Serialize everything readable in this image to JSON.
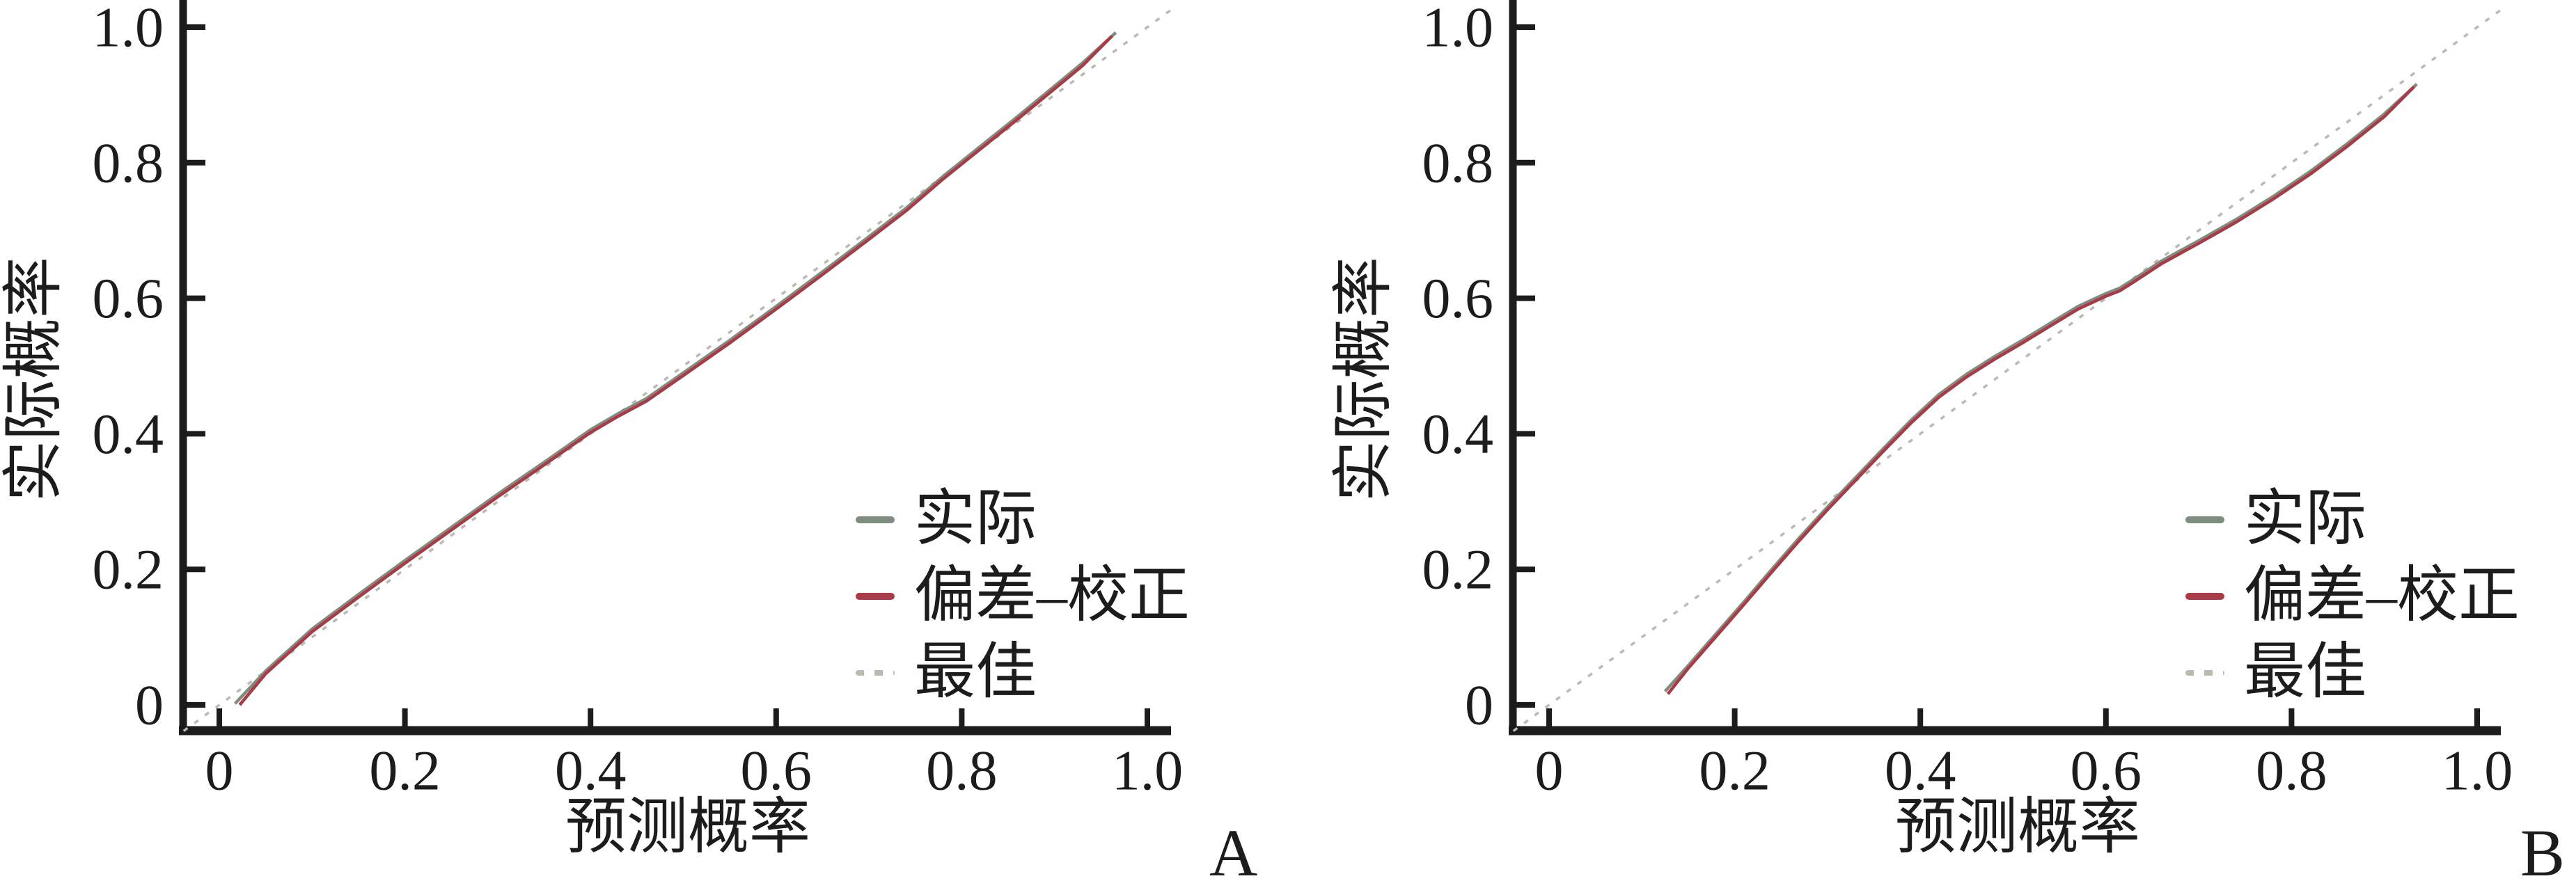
{
  "colors": {
    "axis": "#1c1c1c",
    "text": "#1c1c1c",
    "background": "#ffffff"
  },
  "chart_data": [
    {
      "type": "line",
      "panel_label": "A",
      "title": "",
      "xlabel": "预测概率",
      "ylabel": "实际概率",
      "xlim": [
        0,
        1
      ],
      "ylim": [
        0,
        1
      ],
      "grid": false,
      "legend_position": "lower-right-inside",
      "x_ticks": [
        0,
        0.2,
        0.4,
        0.6,
        0.8,
        1.0
      ],
      "x_tick_labels": [
        "0",
        "0.2",
        "0.4",
        "0.6",
        "0.8",
        "1.0"
      ],
      "y_ticks": [
        0,
        0.2,
        0.4,
        0.6,
        0.8,
        1.0
      ],
      "y_tick_labels": [
        "0",
        "0.2",
        "0.4",
        "0.6",
        "0.8",
        "1.0"
      ],
      "legend": [
        {
          "label": "实际",
          "color": "#7E8D7F",
          "style": "solid"
        },
        {
          "label": "偏差–校正",
          "color": "#A83B46",
          "style": "solid"
        },
        {
          "label": "最佳",
          "color": "#BBB9B0",
          "style": "dotted"
        }
      ],
      "series": [
        {
          "id": "apparent",
          "name": "实际",
          "color": "#7E8D7F",
          "style": "solid",
          "points": [
            [
              0.017,
              0.002
            ],
            [
              0.05,
              0.05
            ],
            [
              0.1,
              0.112
            ],
            [
              0.15,
              0.163
            ],
            [
              0.2,
              0.213
            ],
            [
              0.25,
              0.262
            ],
            [
              0.3,
              0.311
            ],
            [
              0.35,
              0.358
            ],
            [
              0.4,
              0.406
            ],
            [
              0.43,
              0.43
            ],
            [
              0.46,
              0.452
            ],
            [
              0.5,
              0.49
            ],
            [
              0.55,
              0.538
            ],
            [
              0.6,
              0.588
            ],
            [
              0.65,
              0.639
            ],
            [
              0.7,
              0.691
            ],
            [
              0.74,
              0.733
            ],
            [
              0.78,
              0.78
            ],
            [
              0.82,
              0.824
            ],
            [
              0.86,
              0.868
            ],
            [
              0.9,
              0.913
            ],
            [
              0.93,
              0.947
            ],
            [
              0.966,
              0.992
            ]
          ]
        },
        {
          "id": "bias-corrected",
          "name": "偏差–校正",
          "color": "#A83B46",
          "style": "solid",
          "points": [
            [
              0.022,
              0.0
            ],
            [
              0.05,
              0.046
            ],
            [
              0.1,
              0.108
            ],
            [
              0.15,
              0.159
            ],
            [
              0.2,
              0.209
            ],
            [
              0.25,
              0.258
            ],
            [
              0.3,
              0.307
            ],
            [
              0.35,
              0.354
            ],
            [
              0.4,
              0.402
            ],
            [
              0.43,
              0.426
            ],
            [
              0.46,
              0.448
            ],
            [
              0.5,
              0.486
            ],
            [
              0.55,
              0.534
            ],
            [
              0.6,
              0.584
            ],
            [
              0.65,
              0.635
            ],
            [
              0.7,
              0.687
            ],
            [
              0.74,
              0.729
            ],
            [
              0.78,
              0.776
            ],
            [
              0.82,
              0.82
            ],
            [
              0.86,
              0.864
            ],
            [
              0.9,
              0.909
            ],
            [
              0.93,
              0.943
            ],
            [
              0.962,
              0.987
            ]
          ]
        },
        {
          "id": "ideal",
          "name": "最佳",
          "color": "#BBB9B0",
          "style": "dotted",
          "points": [
            [
              -0.0385,
              -0.0385
            ],
            [
              1.026,
              1.026
            ]
          ]
        }
      ]
    },
    {
      "type": "line",
      "panel_label": "B",
      "title": "",
      "xlabel": "预测概率",
      "ylabel": "实际概率",
      "xlim": [
        0,
        1
      ],
      "ylim": [
        0,
        1
      ],
      "grid": false,
      "legend_position": "lower-right-inside",
      "x_ticks": [
        0,
        0.2,
        0.4,
        0.6,
        0.8,
        1.0
      ],
      "x_tick_labels": [
        "0",
        "0.2",
        "0.4",
        "0.6",
        "0.8",
        "1.0"
      ],
      "y_ticks": [
        0,
        0.2,
        0.4,
        0.6,
        0.8,
        1.0
      ],
      "y_tick_labels": [
        "0",
        "0.2",
        "0.4",
        "0.6",
        "0.8",
        "1.0"
      ],
      "legend": [
        {
          "label": "实际",
          "color": "#7E8D7F",
          "style": "solid"
        },
        {
          "label": "偏差–校正",
          "color": "#A83B46",
          "style": "solid"
        },
        {
          "label": "最佳",
          "color": "#BBB9B0",
          "style": "dotted"
        }
      ],
      "series": [
        {
          "id": "apparent",
          "name": "实际",
          "color": "#7E8D7F",
          "style": "solid",
          "points": [
            [
              0.125,
              0.02
            ],
            [
              0.15,
              0.058
            ],
            [
              0.18,
              0.105
            ],
            [
              0.21,
              0.152
            ],
            [
              0.24,
              0.2
            ],
            [
              0.27,
              0.247
            ],
            [
              0.3,
              0.292
            ],
            [
              0.33,
              0.335
            ],
            [
              0.36,
              0.378
            ],
            [
              0.39,
              0.42
            ],
            [
              0.42,
              0.458
            ],
            [
              0.45,
              0.488
            ],
            [
              0.48,
              0.514
            ],
            [
              0.51,
              0.538
            ],
            [
              0.54,
              0.563
            ],
            [
              0.57,
              0.588
            ],
            [
              0.6,
              0.607
            ],
            [
              0.615,
              0.615
            ],
            [
              0.63,
              0.628
            ],
            [
              0.66,
              0.655
            ],
            [
              0.7,
              0.685
            ],
            [
              0.74,
              0.716
            ],
            [
              0.78,
              0.75
            ],
            [
              0.82,
              0.787
            ],
            [
              0.86,
              0.828
            ],
            [
              0.9,
              0.872
            ],
            [
              0.935,
              0.916
            ]
          ]
        },
        {
          "id": "bias-corrected",
          "name": "偏差–校正",
          "color": "#A83B46",
          "style": "solid",
          "points": [
            [
              0.128,
              0.016
            ],
            [
              0.15,
              0.054
            ],
            [
              0.18,
              0.101
            ],
            [
              0.21,
              0.148
            ],
            [
              0.24,
              0.196
            ],
            [
              0.27,
              0.243
            ],
            [
              0.3,
              0.288
            ],
            [
              0.33,
              0.331
            ],
            [
              0.36,
              0.374
            ],
            [
              0.39,
              0.416
            ],
            [
              0.42,
              0.454
            ],
            [
              0.45,
              0.484
            ],
            [
              0.48,
              0.51
            ],
            [
              0.51,
              0.534
            ],
            [
              0.54,
              0.559
            ],
            [
              0.57,
              0.584
            ],
            [
              0.6,
              0.603
            ],
            [
              0.615,
              0.611
            ],
            [
              0.63,
              0.624
            ],
            [
              0.66,
              0.651
            ],
            [
              0.7,
              0.681
            ],
            [
              0.74,
              0.712
            ],
            [
              0.78,
              0.746
            ],
            [
              0.82,
              0.783
            ],
            [
              0.86,
              0.824
            ],
            [
              0.9,
              0.868
            ],
            [
              0.932,
              0.912
            ]
          ]
        },
        {
          "id": "ideal",
          "name": "最佳",
          "color": "#BBB9B0",
          "style": "dotted",
          "points": [
            [
              -0.0385,
              -0.0385
            ],
            [
              1.026,
              1.026
            ]
          ]
        }
      ]
    }
  ]
}
